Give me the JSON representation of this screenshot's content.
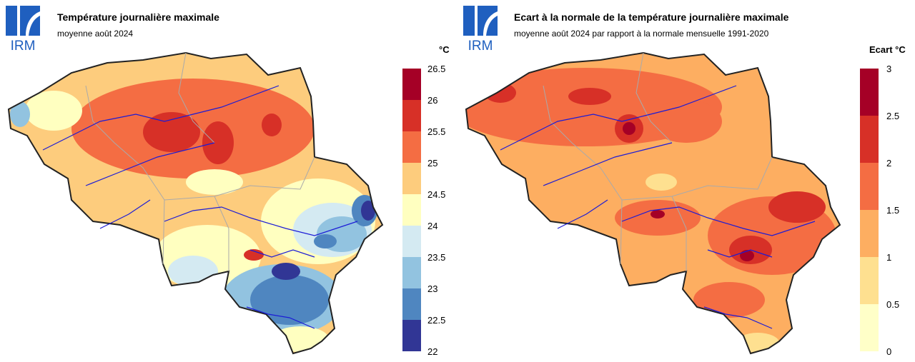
{
  "logo": {
    "text": "IRM",
    "icon": "irm-logo-icon",
    "color": "#1f5fbf"
  },
  "panels": [
    {
      "title": "Température journalière maximale",
      "subtitle": "moyenne août 2024",
      "unit": "°C",
      "legend": {
        "ticks": [
          "26.5",
          "26",
          "25.5",
          "25",
          "24.5",
          "24",
          "23.5",
          "23",
          "22.5",
          "22"
        ],
        "colors": [
          "#a50026",
          "#d73027",
          "#f46d43",
          "#fdcc7d",
          "#ffffc0",
          "#d4eaf2",
          "#92c3e0",
          "#4f86c0",
          "#313695"
        ]
      }
    },
    {
      "title": "Ecart à la normale de la température journalière maximale",
      "subtitle": "moyenne août 2024 par rapport à la normale mensuelle 1991-2020",
      "unit": "Ecart °C",
      "legend": {
        "ticks": [
          "3",
          "2.5",
          "2",
          "1.5",
          "1",
          "0.5",
          "0"
        ],
        "colors": [
          "#a50026",
          "#d73027",
          "#f46d43",
          "#fdae61",
          "#fee090",
          "#ffffc8"
        ]
      }
    }
  ]
}
